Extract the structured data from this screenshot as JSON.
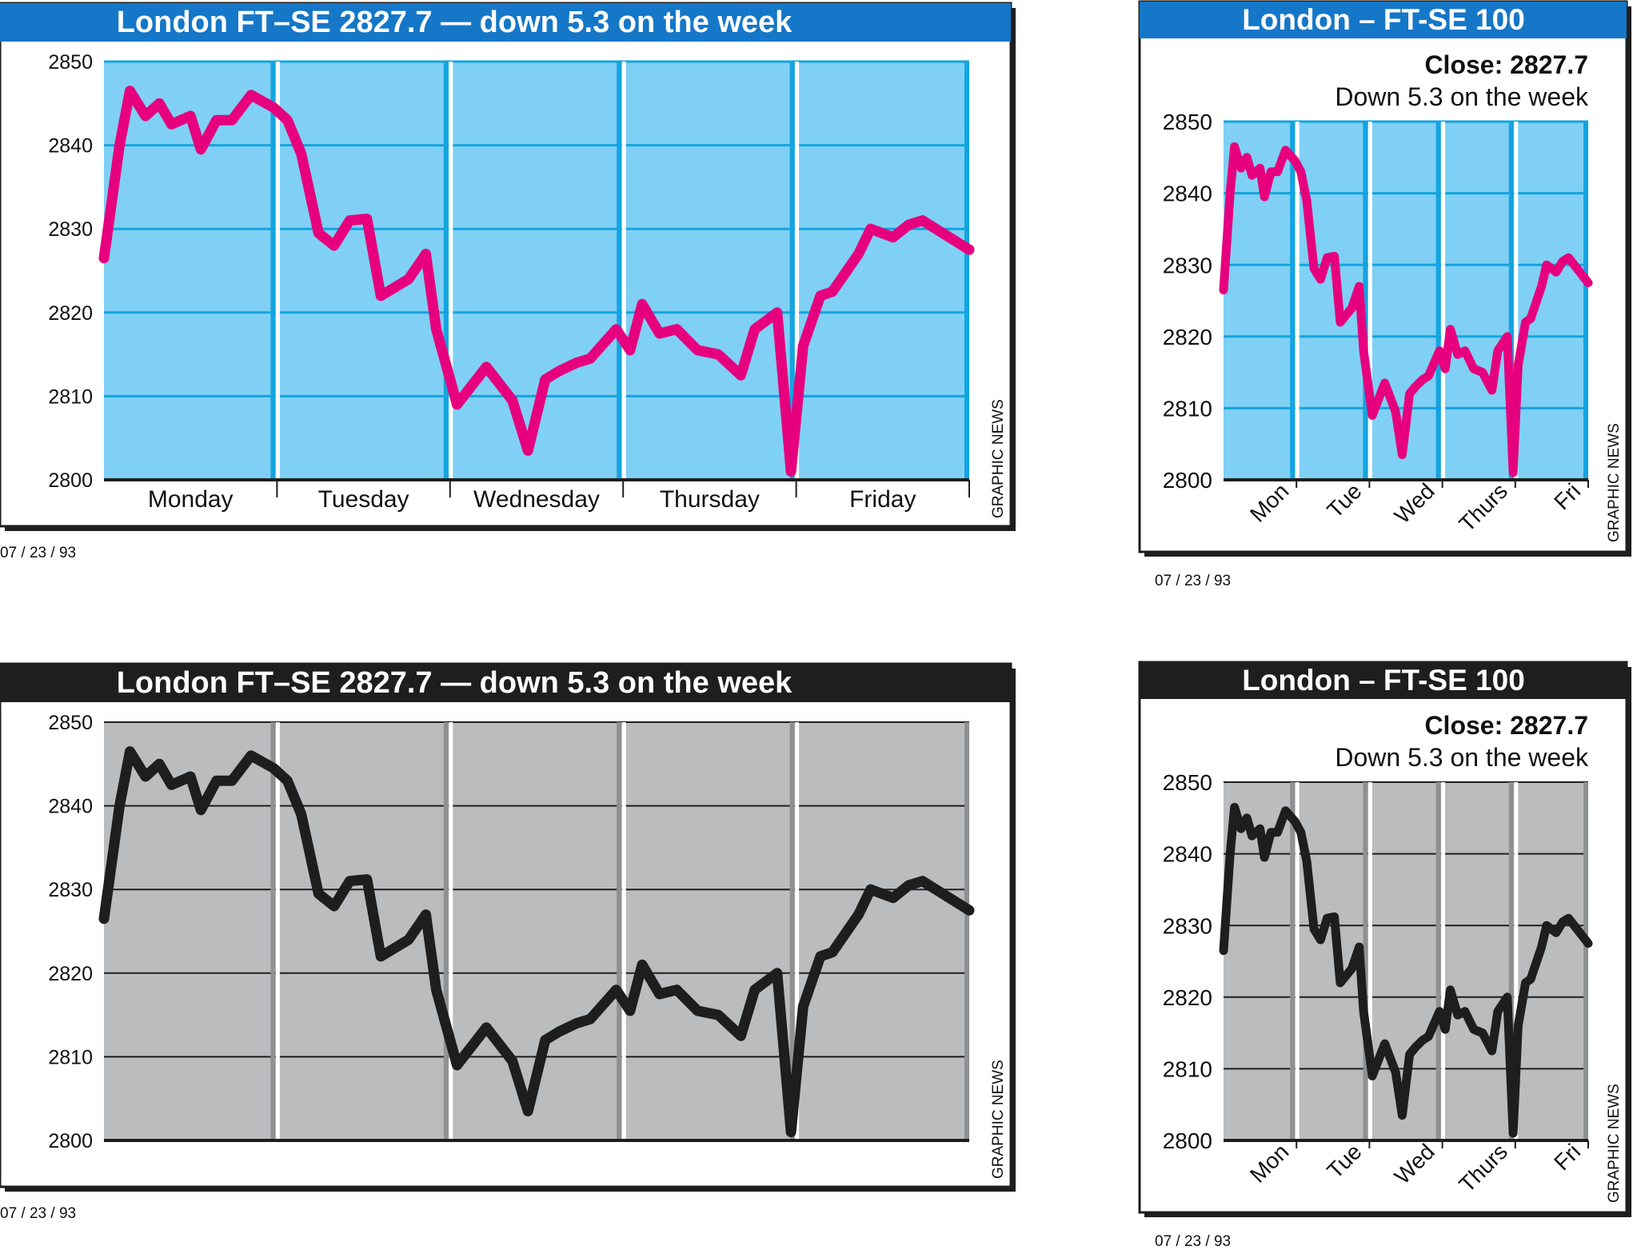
{
  "charts": {
    "top_left": {
      "title": "London FT–SE 2827.7 — down 5.3 on the week",
      "credit": "GRAPHIC NEWS",
      "date": "07 / 23 / 93"
    },
    "top_right": {
      "title": "London – FT-SE 100",
      "close": "Close: 2827.7",
      "change": "Down 5.3 on the week",
      "credit": "GRAPHIC NEWS",
      "date": "07 / 23 / 93"
    },
    "bottom_left": {
      "title": "London FT–SE 2827.7 — down 5.3 on the week",
      "credit": "GRAPHIC NEWS",
      "date": "07 / 23 / 93"
    },
    "bottom_right": {
      "title": "London – FT-SE 100",
      "close": "Close: 2827.7",
      "change": "Down 5.3 on the week",
      "credit": "GRAPHIC NEWS",
      "date": "07 / 23 / 93"
    }
  },
  "colors": {
    "color_title_bar": "#1577c8",
    "color_mono_title_bar": "#1e1e1e",
    "color_plot_bg": "#7fd0f4",
    "color_grid": "#13a4e0",
    "color_line": "#e6007e",
    "color_mono_plot_bg": "#bbbcbe",
    "color_mono_grid": "#1e1e1e",
    "color_mono_line": "#1e1e1e"
  },
  "chart_data": [
    {
      "type": "line",
      "title": "London FT–SE 2827.7 — down 5.3 on the week",
      "variant": "color",
      "ylim": [
        2800,
        2850
      ],
      "yticks": [
        2800,
        2810,
        2820,
        2830,
        2840,
        2850
      ],
      "xlim": [
        0,
        5
      ],
      "categories": [
        "Monday",
        "Tuesday",
        "Wednesday",
        "Thursday",
        "Friday"
      ],
      "grid": true,
      "series": [
        {
          "x": [
            0.0,
            0.09,
            0.15,
            0.24,
            0.32,
            0.39,
            0.5,
            0.56,
            0.65,
            0.74,
            0.85,
            0.98,
            1.06,
            1.14,
            1.24,
            1.33,
            1.42,
            1.52,
            1.6,
            1.76,
            1.86,
            1.92,
            2.04,
            2.21,
            2.36,
            2.45,
            2.55,
            2.63,
            2.73,
            2.81,
            2.96,
            3.04,
            3.11,
            3.21,
            3.31,
            3.43,
            3.55,
            3.68,
            3.76,
            3.89,
            3.97,
            4.04,
            4.14,
            4.21,
            4.36,
            4.43,
            4.56,
            4.65,
            4.73,
            5.0
          ],
          "y": [
            2826.5,
            2840.0,
            2846.5,
            2843.5,
            2845.0,
            2842.5,
            2843.5,
            2839.5,
            2843.0,
            2843.0,
            2846.0,
            2844.5,
            2843.0,
            2839.0,
            2829.5,
            2828.0,
            2831.0,
            2831.2,
            2822.0,
            2824.0,
            2827.0,
            2818.0,
            2809.0,
            2813.5,
            2809.5,
            2803.5,
            2812.0,
            2813.0,
            2814.0,
            2814.5,
            2818.0,
            2815.5,
            2821.0,
            2817.5,
            2818.0,
            2815.5,
            2815.0,
            2812.5,
            2818.0,
            2820.0,
            2801.0,
            2816.0,
            2822.0,
            2822.5,
            2827.0,
            2830.0,
            2829.0,
            2830.5,
            2831.0,
            2827.5
          ]
        }
      ]
    },
    {
      "type": "line",
      "title": "London – FT-SE 100",
      "subtitle": "Close: 2827.7 / Down 5.3 on the week",
      "variant": "color",
      "ylim": [
        2800,
        2850
      ],
      "yticks": [
        2800,
        2810,
        2820,
        2830,
        2840,
        2850
      ],
      "xlim": [
        0,
        5
      ],
      "categories": [
        "Mon",
        "Tue",
        "Wed",
        "Thurs",
        "Fri"
      ],
      "grid": true,
      "series": [
        {
          "x": [
            0.0,
            0.09,
            0.15,
            0.24,
            0.32,
            0.39,
            0.5,
            0.56,
            0.65,
            0.74,
            0.85,
            0.98,
            1.06,
            1.14,
            1.24,
            1.33,
            1.42,
            1.52,
            1.6,
            1.76,
            1.86,
            1.92,
            2.04,
            2.21,
            2.36,
            2.45,
            2.55,
            2.63,
            2.73,
            2.81,
            2.96,
            3.04,
            3.11,
            3.21,
            3.31,
            3.43,
            3.55,
            3.68,
            3.76,
            3.89,
            3.97,
            4.04,
            4.14,
            4.21,
            4.36,
            4.43,
            4.56,
            4.65,
            4.73,
            5.0
          ],
          "y": [
            2826.5,
            2840.0,
            2846.5,
            2843.5,
            2845.0,
            2842.5,
            2843.5,
            2839.5,
            2843.0,
            2843.0,
            2846.0,
            2844.5,
            2843.0,
            2839.0,
            2829.5,
            2828.0,
            2831.0,
            2831.2,
            2822.0,
            2824.0,
            2827.0,
            2818.0,
            2809.0,
            2813.5,
            2809.5,
            2803.5,
            2812.0,
            2813.0,
            2814.0,
            2814.5,
            2818.0,
            2815.5,
            2821.0,
            2817.5,
            2818.0,
            2815.5,
            2815.0,
            2812.5,
            2818.0,
            2820.0,
            2801.0,
            2816.0,
            2822.0,
            2822.5,
            2827.0,
            2830.0,
            2829.0,
            2830.5,
            2831.0,
            2827.5
          ]
        }
      ]
    },
    {
      "type": "line",
      "title": "London FT–SE 2827.7 — down 5.3 on the week",
      "variant": "mono",
      "ylim": [
        2800,
        2850
      ],
      "yticks": [
        2800,
        2810,
        2820,
        2830,
        2840,
        2850
      ],
      "xlim": [
        0,
        5
      ],
      "categories": [],
      "grid": true,
      "series": [
        {
          "x": [
            0.0,
            0.09,
            0.15,
            0.24,
            0.32,
            0.39,
            0.5,
            0.56,
            0.65,
            0.74,
            0.85,
            0.98,
            1.06,
            1.14,
            1.24,
            1.33,
            1.42,
            1.52,
            1.6,
            1.76,
            1.86,
            1.92,
            2.04,
            2.21,
            2.36,
            2.45,
            2.55,
            2.63,
            2.73,
            2.81,
            2.96,
            3.04,
            3.11,
            3.21,
            3.31,
            3.43,
            3.55,
            3.68,
            3.76,
            3.89,
            3.97,
            4.04,
            4.14,
            4.21,
            4.36,
            4.43,
            4.56,
            4.65,
            4.73,
            5.0
          ],
          "y": [
            2826.5,
            2840.0,
            2846.5,
            2843.5,
            2845.0,
            2842.5,
            2843.5,
            2839.5,
            2843.0,
            2843.0,
            2846.0,
            2844.5,
            2843.0,
            2839.0,
            2829.5,
            2828.0,
            2831.0,
            2831.2,
            2822.0,
            2824.0,
            2827.0,
            2818.0,
            2809.0,
            2813.5,
            2809.5,
            2803.5,
            2812.0,
            2813.0,
            2814.0,
            2814.5,
            2818.0,
            2815.5,
            2821.0,
            2817.5,
            2818.0,
            2815.5,
            2815.0,
            2812.5,
            2818.0,
            2820.0,
            2801.0,
            2816.0,
            2822.0,
            2822.5,
            2827.0,
            2830.0,
            2829.0,
            2830.5,
            2831.0,
            2827.5
          ]
        }
      ]
    },
    {
      "type": "line",
      "title": "London – FT-SE 100",
      "subtitle": "Close: 2827.7 / Down 5.3 on the week",
      "variant": "mono",
      "ylim": [
        2800,
        2850
      ],
      "yticks": [
        2800,
        2810,
        2820,
        2830,
        2840,
        2850
      ],
      "xlim": [
        0,
        5
      ],
      "categories": [
        "Mon",
        "Tue",
        "Wed",
        "Thurs",
        "Fri"
      ],
      "grid": true,
      "series": [
        {
          "x": [
            0.0,
            0.09,
            0.15,
            0.24,
            0.32,
            0.39,
            0.5,
            0.56,
            0.65,
            0.74,
            0.85,
            0.98,
            1.06,
            1.14,
            1.24,
            1.33,
            1.42,
            1.52,
            1.6,
            1.76,
            1.86,
            1.92,
            2.04,
            2.21,
            2.36,
            2.45,
            2.55,
            2.63,
            2.73,
            2.81,
            2.96,
            3.04,
            3.11,
            3.21,
            3.31,
            3.43,
            3.55,
            3.68,
            3.76,
            3.89,
            3.97,
            4.04,
            4.14,
            4.21,
            4.36,
            4.43,
            4.56,
            4.65,
            4.73,
            5.0
          ],
          "y": [
            2826.5,
            2840.0,
            2846.5,
            2843.5,
            2845.0,
            2842.5,
            2843.5,
            2839.5,
            2843.0,
            2843.0,
            2846.0,
            2844.5,
            2843.0,
            2839.0,
            2829.5,
            2828.0,
            2831.0,
            2831.2,
            2822.0,
            2824.0,
            2827.0,
            2818.0,
            2809.0,
            2813.5,
            2809.5,
            2803.5,
            2812.0,
            2813.0,
            2814.0,
            2814.5,
            2818.0,
            2815.5,
            2821.0,
            2817.5,
            2818.0,
            2815.5,
            2815.0,
            2812.5,
            2818.0,
            2820.0,
            2801.0,
            2816.0,
            2822.0,
            2822.5,
            2827.0,
            2830.0,
            2829.0,
            2830.5,
            2831.0,
            2827.5
          ]
        }
      ]
    }
  ]
}
